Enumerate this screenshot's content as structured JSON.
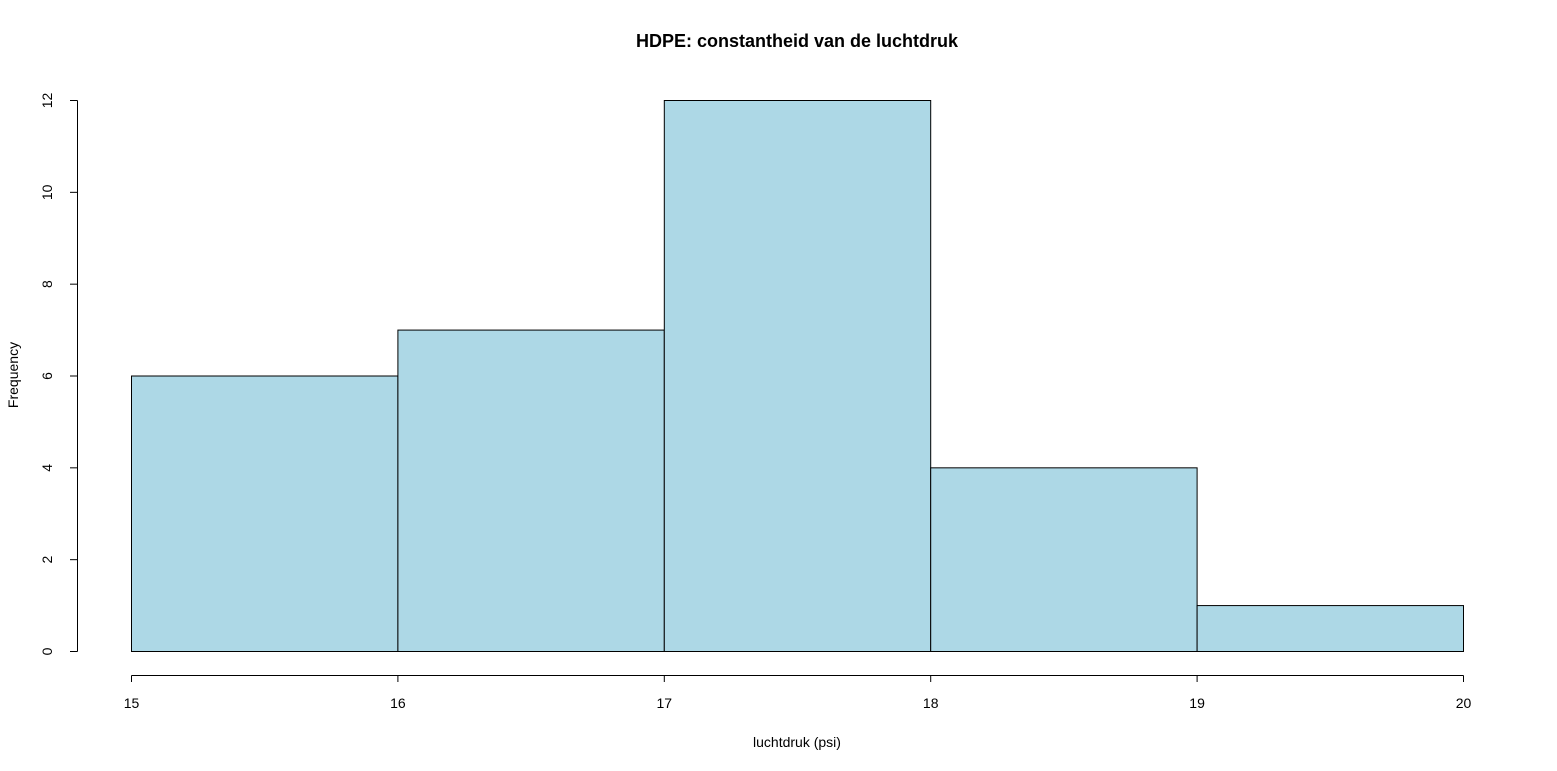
{
  "chart_data": {
    "type": "bar",
    "subtype": "histogram",
    "title": "HDPE: constantheid van de luchtdruk",
    "xlabel": "luchtdruk (psi)",
    "ylabel": "Frequency",
    "bins": [
      {
        "from": 15,
        "to": 16,
        "count": 6
      },
      {
        "from": 16,
        "to": 17,
        "count": 7
      },
      {
        "from": 17,
        "to": 18,
        "count": 12
      },
      {
        "from": 18,
        "to": 19,
        "count": 4
      },
      {
        "from": 19,
        "to": 20,
        "count": 1
      }
    ],
    "xlim": [
      15,
      20
    ],
    "ylim": [
      0,
      12
    ],
    "x_ticks": [
      "15",
      "16",
      "17",
      "18",
      "19",
      "20"
    ],
    "y_ticks": [
      "0",
      "2",
      "4",
      "6",
      "8",
      "10",
      "12"
    ],
    "bar_color": "#add8e6",
    "border_color": "#000000",
    "grid": false,
    "legend": "none"
  }
}
